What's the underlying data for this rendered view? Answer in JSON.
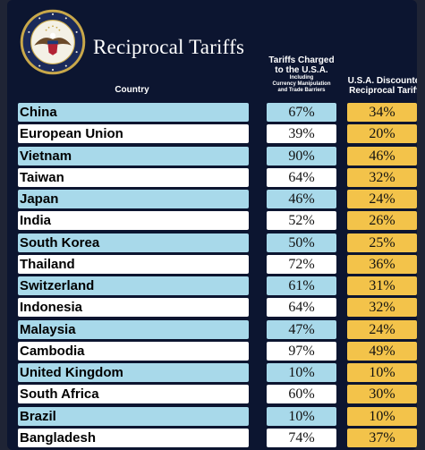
{
  "title": "Reciprocal Tariffs",
  "seal": {
    "outer_text": "SEAL OF THE PRESIDENT OF THE UNITED STATES"
  },
  "headers": {
    "country": "Country",
    "charged_line1": "Tariffs Charged",
    "charged_line2": "to the U.S.A.",
    "charged_sub1": "Including",
    "charged_sub2": "Currency Manipulation",
    "charged_sub3": "and Trade Barriers",
    "discounted_line1": "U.S.A. Discounted",
    "discounted_line2": "Reciprocal Tariffs"
  },
  "rows": [
    {
      "country": "China",
      "charged": "67%",
      "discounted": "34%"
    },
    {
      "country": "European Union",
      "charged": "39%",
      "discounted": "20%"
    },
    {
      "country": "Vietnam",
      "charged": "90%",
      "discounted": "46%"
    },
    {
      "country": "Taiwan",
      "charged": "64%",
      "discounted": "32%"
    },
    {
      "country": "Japan",
      "charged": "46%",
      "discounted": "24%"
    },
    {
      "country": "India",
      "charged": "52%",
      "discounted": "26%"
    },
    {
      "country": "South Korea",
      "charged": "50%",
      "discounted": "25%"
    },
    {
      "country": "Thailand",
      "charged": "72%",
      "discounted": "36%"
    },
    {
      "country": "Switzerland",
      "charged": "61%",
      "discounted": "31%"
    },
    {
      "country": "Indonesia",
      "charged": "64%",
      "discounted": "32%"
    },
    {
      "country": "Malaysia",
      "charged": "47%",
      "discounted": "24%"
    },
    {
      "country": "Cambodia",
      "charged": "97%",
      "discounted": "49%"
    },
    {
      "country": "United Kingdom",
      "charged": "10%",
      "discounted": "10%"
    },
    {
      "country": "South Africa",
      "charged": "60%",
      "discounted": "30%"
    },
    {
      "country": "Brazil",
      "charged": "10%",
      "discounted": "10%"
    },
    {
      "country": "Bangladesh",
      "charged": "74%",
      "discounted": "37%"
    }
  ],
  "colors": {
    "background": "#0c1530",
    "row_blue": "#a8d9ea",
    "row_white": "#ffffff",
    "discount_gold": "#f3c34a"
  }
}
